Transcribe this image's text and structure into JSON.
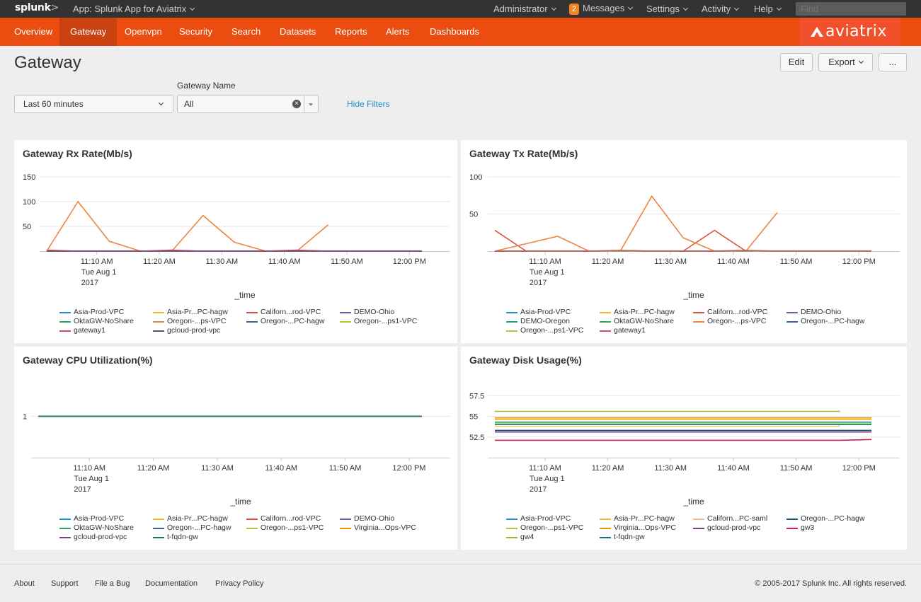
{
  "topbar": {
    "logo": "splunk",
    "logo_suffix": ">",
    "app": "App: Splunk App for Aviatrix",
    "administrator": "Administrator",
    "messages_count": "2",
    "messages": "Messages",
    "settings": "Settings",
    "activity": "Activity",
    "help": "Help",
    "find_placeholder": "Find"
  },
  "nav": {
    "items": [
      "Overview",
      "Gateway",
      "Openvpn",
      "Security",
      "Search",
      "Datasets",
      "Reports",
      "Alerts",
      "Dashboards"
    ],
    "active": "Gateway",
    "brand": "aviatrix"
  },
  "page": {
    "title": "Gateway",
    "edit": "Edit",
    "export": "Export",
    "more": "..."
  },
  "filters": {
    "time_value": "Last 60 minutes",
    "gateway_label": "Gateway Name",
    "gateway_value": "All",
    "hide_filters": "Hide Filters"
  },
  "colors": {
    "c0": "#1e93c6",
    "c1": "#f2b827",
    "c2": "#d6563c",
    "c3": "#6a5c9e",
    "c4": "#31a35f",
    "c5": "#ed8440",
    "c6": "#3863a0",
    "c7": "#a2cc3e",
    "c8": "#cc5068",
    "c9": "#73427f",
    "c10": "#11a88b",
    "c11": "#ea9600",
    "c12": "#f7bc84",
    "c13": "#1f4d6a",
    "c14": "#ce1d5a",
    "c15": "#8fba38",
    "c16": "#0e776d"
  },
  "chart_data": [
    {
      "type": "line",
      "title": "Gateway Rx Rate(Mb/s)",
      "xlabel": "_time",
      "ylabel": "",
      "ylim": [
        0,
        150
      ],
      "yticks": [
        50,
        100,
        150
      ],
      "x_tick_labels": [
        "11:10 AM",
        "11:20 AM",
        "11:30 AM",
        "11:40 AM",
        "11:50 AM",
        "12:00 PM"
      ],
      "x_subtitle": [
        "Tue Aug 1",
        "2017"
      ],
      "x_times": [
        "11:02",
        "11:07",
        "11:12",
        "11:17",
        "11:22",
        "11:27",
        "11:32",
        "11:37",
        "11:42",
        "11:47",
        "11:52",
        "11:57",
        "12:02"
      ],
      "series": [
        {
          "name": "Asia-Prod-VPC",
          "color": "#1e93c6",
          "values": [
            0,
            0,
            0,
            0,
            0,
            0,
            0,
            0,
            0,
            0,
            0,
            0,
            0
          ]
        },
        {
          "name": "Asia-Pr...PC-hagw",
          "color": "#f2b827",
          "values": [
            0,
            0,
            0,
            0,
            0,
            0,
            0,
            0,
            0,
            0,
            0,
            0,
            0
          ]
        },
        {
          "name": "Californ...rod-VPC",
          "color": "#d6563c",
          "values": [
            2,
            0,
            0,
            0,
            0,
            0,
            0,
            0,
            0,
            0,
            0,
            0,
            0
          ]
        },
        {
          "name": "DEMO-Ohio",
          "color": "#6a5c9e",
          "values": [
            0,
            0,
            0,
            0,
            0,
            0,
            0,
            0,
            0,
            0,
            0,
            0,
            0
          ]
        },
        {
          "name": "OktaGW-NoShare",
          "color": "#31a35f",
          "values": [
            0,
            0,
            0,
            0,
            0,
            0,
            0,
            0,
            0,
            0,
            0,
            0,
            0
          ]
        },
        {
          "name": "Oregon-...ps-VPC",
          "color": "#ed8440",
          "values": [
            0,
            100,
            20,
            0,
            0,
            72,
            18,
            0,
            0,
            53,
            null,
            null,
            null
          ]
        },
        {
          "name": "Oregon-...PC-hagw",
          "color": "#3863a0",
          "values": [
            0,
            0,
            0,
            0,
            0,
            0,
            0,
            0,
            0,
            0,
            0,
            0,
            0
          ]
        },
        {
          "name": "Oregon-...ps1-VPC",
          "color": "#a2cc3e",
          "values": [
            0,
            0,
            0,
            0,
            0,
            0,
            0,
            0,
            0,
            0,
            0,
            0,
            0
          ]
        },
        {
          "name": "gateway1",
          "color": "#cc5068",
          "values": [
            0,
            0,
            0,
            0,
            2,
            0,
            0,
            0,
            2,
            0,
            0,
            0,
            0
          ]
        },
        {
          "name": "gcloud-prod-vpc",
          "color": "#73427f",
          "values": [
            0,
            0,
            0,
            0,
            0,
            0,
            0,
            0,
            0,
            0,
            0,
            0,
            0
          ]
        }
      ]
    },
    {
      "type": "line",
      "title": "Gateway Tx Rate(Mb/s)",
      "xlabel": "_time",
      "ylabel": "",
      "ylim": [
        0,
        100
      ],
      "yticks": [
        50,
        100
      ],
      "x_tick_labels": [
        "11:10 AM",
        "11:20 AM",
        "11:30 AM",
        "11:40 AM",
        "11:50 AM",
        "12:00 PM"
      ],
      "x_subtitle": [
        "Tue Aug 1",
        "2017"
      ],
      "x_times": [
        "11:02",
        "11:07",
        "11:12",
        "11:17",
        "11:22",
        "11:27",
        "11:32",
        "11:37",
        "11:42",
        "11:47",
        "11:52",
        "11:57",
        "12:02"
      ],
      "series": [
        {
          "name": "Asia-Prod-VPC",
          "color": "#1e93c6",
          "values": [
            0,
            0,
            0,
            0,
            0,
            0,
            0,
            0,
            0,
            0,
            0,
            0,
            0
          ]
        },
        {
          "name": "Asia-Pr...PC-hagw",
          "color": "#f2b827",
          "values": [
            0,
            0,
            0,
            0,
            0,
            0,
            0,
            0,
            0,
            0,
            0,
            0,
            0
          ]
        },
        {
          "name": "Californ...rod-VPC",
          "color": "#d6563c",
          "values": [
            28,
            0,
            0,
            0,
            0,
            0,
            0,
            28,
            0,
            0,
            0,
            0,
            0
          ]
        },
        {
          "name": "DEMO-Ohio",
          "color": "#6a5c9e",
          "values": [
            0,
            0,
            0,
            0,
            0,
            0,
            0,
            0,
            0,
            0,
            0,
            0,
            0
          ]
        },
        {
          "name": "DEMO-Oregon",
          "color": "#11a88b",
          "values": [
            0,
            0,
            0,
            0,
            0,
            0,
            0,
            0,
            0,
            0,
            0,
            0,
            0
          ]
        },
        {
          "name": "OktaGW-NoShare",
          "color": "#31a35f",
          "values": [
            0,
            0,
            0,
            0,
            0,
            0,
            0,
            0,
            0,
            0,
            0,
            0,
            0
          ]
        },
        {
          "name": "Oregon-...ps-VPC",
          "color": "#ed8440",
          "values": [
            0,
            10,
            20,
            0,
            0,
            74,
            18,
            0,
            0,
            52,
            null,
            null,
            null
          ]
        },
        {
          "name": "Oregon-...PC-hagw",
          "color": "#3863a0",
          "values": [
            0,
            0,
            0,
            0,
            0,
            0,
            0,
            0,
            0,
            0,
            0,
            0,
            0
          ]
        },
        {
          "name": "Oregon-...ps1-VPC",
          "color": "#a2cc3e",
          "values": [
            0,
            0,
            0,
            0,
            0,
            0,
            0,
            0,
            0,
            0,
            0,
            0,
            0
          ]
        },
        {
          "name": "gateway1",
          "color": "#cc5068",
          "values": [
            0,
            0,
            0,
            0,
            1,
            0,
            0,
            0,
            1,
            0,
            0,
            0,
            0
          ]
        }
      ]
    },
    {
      "type": "line",
      "title": "Gateway CPU Utilization(%)",
      "xlabel": "_time",
      "ylabel": "",
      "ylim": [
        0,
        2
      ],
      "yticks": [
        1
      ],
      "x_tick_labels": [
        "11:10 AM",
        "11:20 AM",
        "11:30 AM",
        "11:40 AM",
        "11:50 AM",
        "12:00 PM"
      ],
      "x_subtitle": [
        "Tue Aug 1",
        "2017"
      ],
      "x_times": [
        "11:02",
        "12:02"
      ],
      "series": [
        {
          "name": "Asia-Prod-VPC",
          "color": "#1e93c6",
          "values": [
            1,
            1
          ]
        },
        {
          "name": "Asia-Pr...PC-hagw",
          "color": "#f2b827",
          "values": [
            1,
            1
          ]
        },
        {
          "name": "Californ...rod-VPC",
          "color": "#d6563c",
          "values": [
            1,
            1
          ]
        },
        {
          "name": "DEMO-Ohio",
          "color": "#6a5c9e",
          "values": [
            1,
            1
          ]
        },
        {
          "name": "OktaGW-NoShare",
          "color": "#31a35f",
          "values": [
            1,
            1
          ]
        },
        {
          "name": "Oregon-...PC-hagw",
          "color": "#3863a0",
          "values": [
            1,
            1
          ]
        },
        {
          "name": "Oregon-...ps1-VPC",
          "color": "#a2cc3e",
          "values": [
            1,
            1
          ]
        },
        {
          "name": "Virginia...Ops-VPC",
          "color": "#ea9600",
          "values": [
            1,
            1
          ]
        },
        {
          "name": "gcloud-prod-vpc",
          "color": "#73427f",
          "values": [
            1,
            1
          ]
        },
        {
          "name": "t-fqdn-gw",
          "color": "#0e776d",
          "values": [
            1,
            1
          ]
        }
      ]
    },
    {
      "type": "line",
      "title": "Gateway Disk Usage(%)",
      "xlabel": "_time",
      "ylabel": "",
      "ylim": [
        50,
        60
      ],
      "yticks": [
        52.5,
        55,
        57.5
      ],
      "x_tick_labels": [
        "11:10 AM",
        "11:20 AM",
        "11:30 AM",
        "11:40 AM",
        "11:50 AM",
        "12:00 PM"
      ],
      "x_subtitle": [
        "Tue Aug 1",
        "2017"
      ],
      "x_times": [
        "11:02",
        "11:57",
        "12:02"
      ],
      "series": [
        {
          "name": "Asia-Prod-VPC",
          "color": "#1e93c6",
          "values": [
            54.3,
            54.3,
            54.3
          ]
        },
        {
          "name": "Asia-Pr...PC-hagw",
          "color": "#f2b827",
          "values": [
            54.6,
            54.6,
            54.6
          ]
        },
        {
          "name": "Californ...PC-saml",
          "color": "#f7bc84",
          "values": [
            53.8,
            53.8,
            null
          ]
        },
        {
          "name": "Oregon-...PC-hagw",
          "color": "#1f4d6a",
          "values": [
            53.3,
            53.3,
            53.3
          ]
        },
        {
          "name": "Oregon-...ps1-VPC",
          "color": "#a2cc3e",
          "values": [
            54.2,
            54.2,
            54.2
          ]
        },
        {
          "name": "Virginia...Ops-VPC",
          "color": "#ea9600",
          "values": [
            54.8,
            54.8,
            54.8
          ]
        },
        {
          "name": "gcloud-prod-vpc",
          "color": "#73427f",
          "values": [
            53.1,
            53.1,
            53.1
          ]
        },
        {
          "name": "gw3",
          "color": "#ce1d5a",
          "values": [
            52.1,
            52.1,
            52.2
          ]
        },
        {
          "name": "gw4",
          "color": "#8fba38",
          "values": [
            55.6,
            55.6,
            null
          ]
        },
        {
          "name": "t-fqdn-gw",
          "color": "#0e776d",
          "values": [
            54.0,
            54.0,
            54.0
          ]
        }
      ]
    }
  ],
  "footer": {
    "links": [
      "About",
      "Support",
      "File a Bug",
      "Documentation",
      "Privacy Policy"
    ],
    "copyright": "© 2005-2017 Splunk Inc. All rights reserved."
  }
}
